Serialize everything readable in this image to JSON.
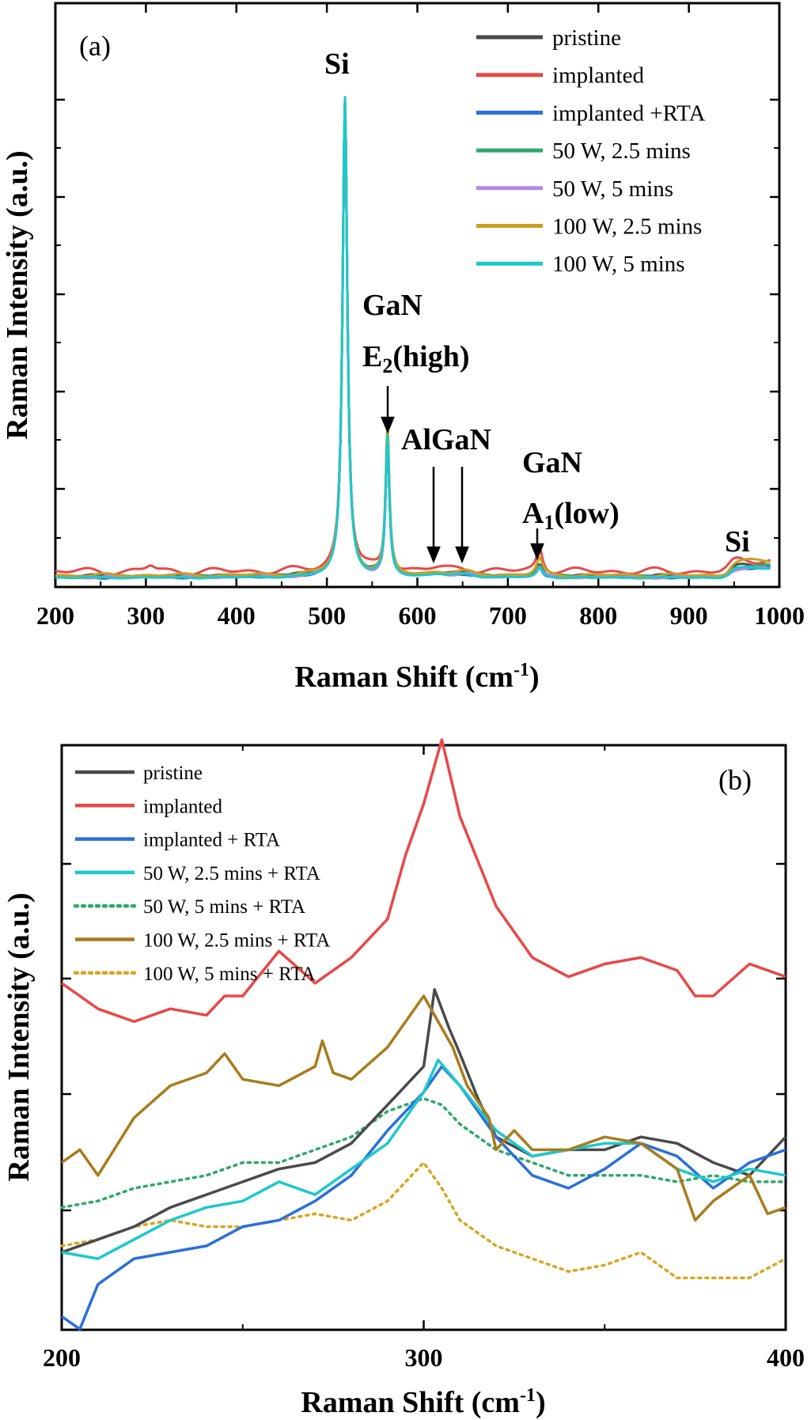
{
  "chart_data": [
    {
      "panel": "(a)",
      "type": "line",
      "xlabel": "Raman Shift (cm",
      "xlabel_sup": "-1",
      "xlabel_end": ")",
      "ylabel": "Raman Intensity (a.u.)",
      "xlim": [
        200,
        1000
      ],
      "ylim": [
        0,
        1
      ],
      "x_ticks": [
        "200",
        "300",
        "400",
        "500",
        "600",
        "700",
        "800",
        "900",
        "1000"
      ],
      "y_tick_labels_shown": false,
      "legend_position": "top-right",
      "series": [
        {
          "name": "pristine",
          "color": "#4a4a4a"
        },
        {
          "name": "implanted",
          "color": "#e84848"
        },
        {
          "name": "implanted +RTA",
          "color": "#2a6fdb"
        },
        {
          "name": "50 W, 2.5 mins",
          "color": "#2fa86a"
        },
        {
          "name": "50 W, 5 mins",
          "color": "#b08ae6"
        },
        {
          "name": "100 W, 2.5 mins",
          "color": "#c9a020"
        },
        {
          "name": "100 W, 5 mins",
          "color": "#1cc9cc"
        }
      ],
      "annotations": {
        "si1": "Si",
        "gan_e2_line1": "GaN",
        "gan_e2_line2_main": "E",
        "gan_e2_line2_sub": "2",
        "gan_e2_line2_end": "(high)",
        "algan": "AlGaN",
        "gan_a1_line1": "GaN",
        "gan_a1_line2_main": "A",
        "gan_a1_line2_sub": "1",
        "gan_a1_line2_end": "(low)",
        "si2": "Si"
      },
      "peaks": [
        {
          "label": "Si",
          "x": 520,
          "y": 1.0
        },
        {
          "label": "GaN E2(high)",
          "x": 567,
          "y": 0.3
        },
        {
          "label": "AlGaN",
          "x": 622
        },
        {
          "label": "AlGaN",
          "x": 652
        },
        {
          "label": "GaN A1(low)",
          "x": 735,
          "y": 0.05
        },
        {
          "label": "Si",
          "x": 960,
          "y": 0.03
        }
      ]
    },
    {
      "panel": "(b)",
      "type": "line",
      "xlabel": "Raman Shift (cm",
      "xlabel_sup": "-1",
      "xlabel_end": ")",
      "ylabel": "Raman Intensity (a.u.)",
      "xlim": [
        200,
        400
      ],
      "ylim": [
        0,
        1
      ],
      "x_ticks": [
        "200",
        "300",
        "400"
      ],
      "y_tick_labels_shown": false,
      "legend_position": "top-left",
      "series": [
        {
          "name": "pristine",
          "color": "#4a4a4a",
          "style": "solid",
          "points": [
            [
              200,
              0.1
            ],
            [
              210,
              0.12
            ],
            [
              220,
              0.14
            ],
            [
              230,
              0.17
            ],
            [
              240,
              0.19
            ],
            [
              250,
              0.21
            ],
            [
              260,
              0.23
            ],
            [
              270,
              0.24
            ],
            [
              280,
              0.27
            ],
            [
              290,
              0.33
            ],
            [
              300,
              0.39
            ],
            [
              303,
              0.51
            ],
            [
              307,
              0.45
            ],
            [
              310,
              0.41
            ],
            [
              315,
              0.34
            ],
            [
              320,
              0.28
            ],
            [
              330,
              0.25
            ],
            [
              340,
              0.26
            ],
            [
              350,
              0.26
            ],
            [
              360,
              0.28
            ],
            [
              370,
              0.27
            ],
            [
              380,
              0.24
            ],
            [
              390,
              0.22
            ],
            [
              400,
              0.28
            ]
          ]
        },
        {
          "name": "implanted",
          "color": "#e84848",
          "style": "solid",
          "points": [
            [
              200,
              0.52
            ],
            [
              210,
              0.48
            ],
            [
              220,
              0.46
            ],
            [
              230,
              0.48
            ],
            [
              240,
              0.47
            ],
            [
              245,
              0.5
            ],
            [
              250,
              0.5
            ],
            [
              260,
              0.57
            ],
            [
              270,
              0.52
            ],
            [
              280,
              0.56
            ],
            [
              290,
              0.62
            ],
            [
              295,
              0.72
            ],
            [
              300,
              0.8
            ],
            [
              305,
              0.9
            ],
            [
              310,
              0.78
            ],
            [
              320,
              0.64
            ],
            [
              330,
              0.56
            ],
            [
              340,
              0.53
            ],
            [
              350,
              0.55
            ],
            [
              360,
              0.56
            ],
            [
              370,
              0.54
            ],
            [
              375,
              0.5
            ],
            [
              380,
              0.5
            ],
            [
              390,
              0.55
            ],
            [
              400,
              0.53
            ]
          ]
        },
        {
          "name": "implanted + RTA",
          "color": "#2a6fdb",
          "style": "solid",
          "points": [
            [
              200,
              0.0
            ],
            [
              205,
              -0.02
            ],
            [
              210,
              0.05
            ],
            [
              220,
              0.09
            ],
            [
              230,
              0.1
            ],
            [
              240,
              0.11
            ],
            [
              250,
              0.14
            ],
            [
              260,
              0.15
            ],
            [
              270,
              0.18
            ],
            [
              280,
              0.22
            ],
            [
              290,
              0.29
            ],
            [
              300,
              0.35
            ],
            [
              305,
              0.39
            ],
            [
              310,
              0.36
            ],
            [
              320,
              0.28
            ],
            [
              330,
              0.22
            ],
            [
              340,
              0.2
            ],
            [
              350,
              0.23
            ],
            [
              360,
              0.27
            ],
            [
              370,
              0.25
            ],
            [
              380,
              0.2
            ],
            [
              390,
              0.24
            ],
            [
              400,
              0.26
            ]
          ]
        },
        {
          "name": "50 W, 2.5 mins + RTA",
          "color": "#1cc9cc",
          "style": "solid",
          "points": [
            [
              200,
              0.1
            ],
            [
              210,
              0.09
            ],
            [
              220,
              0.12
            ],
            [
              230,
              0.15
            ],
            [
              240,
              0.17
            ],
            [
              250,
              0.18
            ],
            [
              260,
              0.21
            ],
            [
              270,
              0.19
            ],
            [
              280,
              0.23
            ],
            [
              290,
              0.27
            ],
            [
              300,
              0.35
            ],
            [
              304,
              0.4
            ],
            [
              310,
              0.36
            ],
            [
              320,
              0.29
            ],
            [
              330,
              0.25
            ],
            [
              340,
              0.26
            ],
            [
              350,
              0.27
            ],
            [
              360,
              0.27
            ],
            [
              370,
              0.23
            ],
            [
              380,
              0.21
            ],
            [
              390,
              0.23
            ],
            [
              400,
              0.22
            ]
          ]
        },
        {
          "name": "50 W, 5 mins + RTA",
          "color": "#2fa86a",
          "style": "dotted",
          "points": [
            [
              200,
              0.17
            ],
            [
              210,
              0.18
            ],
            [
              220,
              0.2
            ],
            [
              230,
              0.21
            ],
            [
              240,
              0.22
            ],
            [
              250,
              0.24
            ],
            [
              260,
              0.24
            ],
            [
              270,
              0.26
            ],
            [
              280,
              0.28
            ],
            [
              290,
              0.32
            ],
            [
              300,
              0.34
            ],
            [
              305,
              0.33
            ],
            [
              310,
              0.3
            ],
            [
              320,
              0.26
            ],
            [
              330,
              0.24
            ],
            [
              340,
              0.22
            ],
            [
              350,
              0.22
            ],
            [
              360,
              0.22
            ],
            [
              370,
              0.21
            ],
            [
              380,
              0.22
            ],
            [
              390,
              0.21
            ],
            [
              400,
              0.21
            ]
          ]
        },
        {
          "name": "100 W, 2.5 mins + RTA",
          "color": "#a87c1c",
          "style": "solid",
          "points": [
            [
              200,
              0.24
            ],
            [
              205,
              0.26
            ],
            [
              210,
              0.22
            ],
            [
              220,
              0.31
            ],
            [
              230,
              0.36
            ],
            [
              240,
              0.38
            ],
            [
              245,
              0.41
            ],
            [
              250,
              0.37
            ],
            [
              260,
              0.36
            ],
            [
              270,
              0.39
            ],
            [
              272,
              0.43
            ],
            [
              275,
              0.38
            ],
            [
              280,
              0.37
            ],
            [
              290,
              0.42
            ],
            [
              300,
              0.5
            ],
            [
              308,
              0.42
            ],
            [
              312,
              0.36
            ],
            [
              318,
              0.31
            ],
            [
              320,
              0.26
            ],
            [
              325,
              0.29
            ],
            [
              330,
              0.26
            ],
            [
              340,
              0.26
            ],
            [
              350,
              0.28
            ],
            [
              360,
              0.27
            ],
            [
              370,
              0.23
            ],
            [
              375,
              0.15
            ],
            [
              380,
              0.18
            ],
            [
              390,
              0.22
            ],
            [
              395,
              0.16
            ],
            [
              400,
              0.17
            ]
          ]
        },
        {
          "name": "100 W, 5 mins + RTA",
          "color": "#d9a520",
          "style": "dotted",
          "points": [
            [
              200,
              0.11
            ],
            [
              210,
              0.12
            ],
            [
              220,
              0.14
            ],
            [
              230,
              0.15
            ],
            [
              240,
              0.14
            ],
            [
              250,
              0.14
            ],
            [
              260,
              0.15
            ],
            [
              270,
              0.16
            ],
            [
              280,
              0.15
            ],
            [
              290,
              0.18
            ],
            [
              300,
              0.24
            ],
            [
              305,
              0.2
            ],
            [
              310,
              0.15
            ],
            [
              320,
              0.11
            ],
            [
              330,
              0.09
            ],
            [
              340,
              0.07
            ],
            [
              350,
              0.08
            ],
            [
              360,
              0.1
            ],
            [
              365,
              0.08
            ],
            [
              370,
              0.06
            ],
            [
              375,
              0.06
            ],
            [
              380,
              0.06
            ],
            [
              390,
              0.06
            ],
            [
              400,
              0.09
            ]
          ]
        }
      ]
    }
  ]
}
